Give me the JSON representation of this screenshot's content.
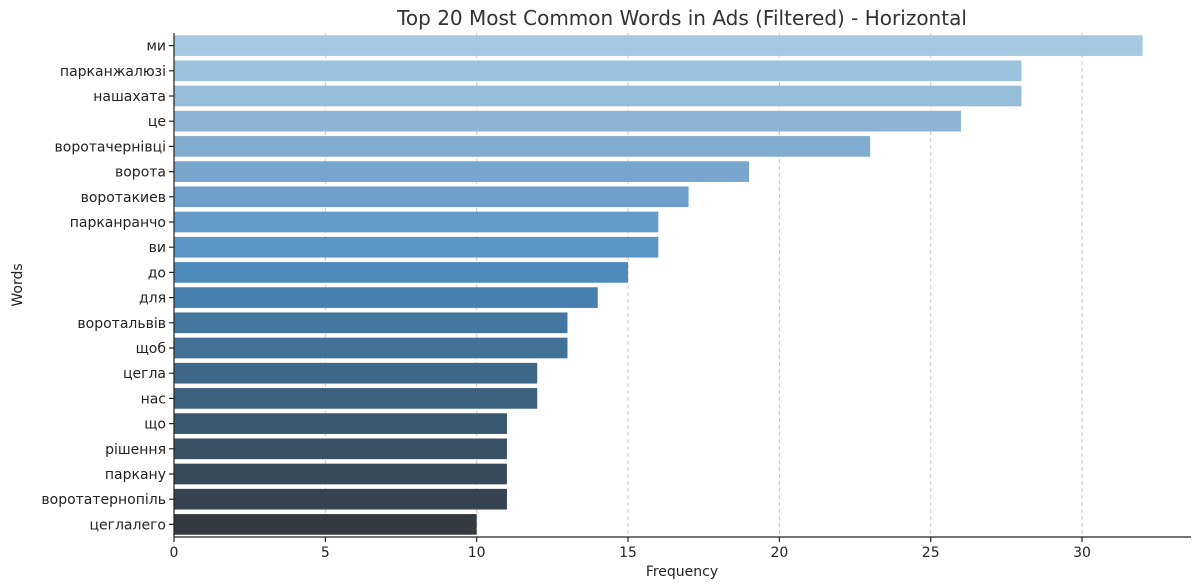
{
  "chart_data": {
    "type": "bar",
    "orientation": "horizontal",
    "title": "Top 20 Most Common Words in Ads (Filtered) - Horizontal",
    "xlabel": "Frequency",
    "ylabel": "Words",
    "xlim": [
      0,
      33.6
    ],
    "xticks": [
      0,
      5,
      10,
      15,
      20,
      25,
      30
    ],
    "grid": "x-dashed",
    "legend": "none",
    "categories": [
      "ми",
      "парканжалюзі",
      "нашахата",
      "це",
      "воротачернівці",
      "ворота",
      "воротакиев",
      "парканранчо",
      "ви",
      "до",
      "для",
      "воротальвів",
      "щоб",
      "цегла",
      "нас",
      "що",
      "рішення",
      "паркану",
      "воротатернопіль",
      "цеглалего"
    ],
    "values": [
      32,
      28,
      28,
      26,
      23,
      19,
      17,
      16,
      16,
      15,
      14,
      13,
      13,
      12,
      12,
      11,
      11,
      11,
      11,
      10
    ],
    "colors": [
      "#a6c8e0",
      "#9cc3dd",
      "#95bcd8",
      "#8cb4d4",
      "#81acd0",
      "#78a5cb",
      "#6d9fca",
      "#649ac7",
      "#5a94c4",
      "#4e8abc",
      "#4780ae",
      "#4377a0",
      "#417195",
      "#3e6888",
      "#3c617d",
      "#3a5870",
      "#395165",
      "#374a5a",
      "#364350",
      "#353a40"
    ]
  }
}
